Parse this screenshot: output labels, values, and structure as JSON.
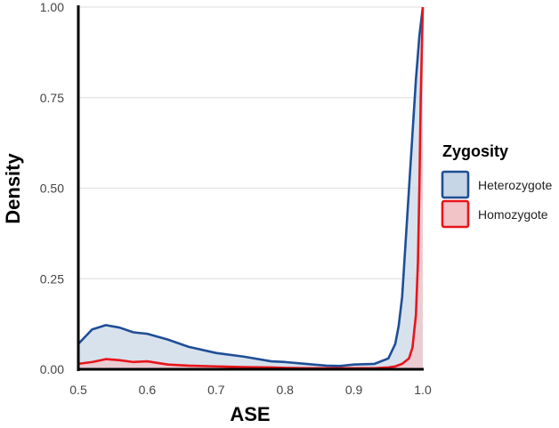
{
  "chart_data": {
    "type": "area",
    "title": "",
    "xlabel": "ASE",
    "ylabel": "Density",
    "xlim": [
      0.5,
      1.0
    ],
    "ylim": [
      0,
      1.0
    ],
    "x_ticks": [
      0.5,
      0.6,
      0.7,
      0.8,
      0.9,
      1.0
    ],
    "x_tick_labels": [
      "0.5",
      "0.6",
      "0.7",
      "0.8",
      "0.9",
      "1.0"
    ],
    "y_ticks": [
      0,
      0.25,
      0.5,
      0.75,
      1.0
    ],
    "y_tick_labels": [
      "0.00",
      "0.25",
      "0.50",
      "0.75",
      "1.00"
    ],
    "grid": "horizontal",
    "legend": {
      "title": "Zygosity",
      "placement": "right"
    },
    "series": [
      {
        "name": "Heterozygote",
        "color": "#1f4e96",
        "fill": "#c6d6e6",
        "x": [
          0.5,
          0.52,
          0.54,
          0.56,
          0.58,
          0.6,
          0.63,
          0.66,
          0.7,
          0.74,
          0.78,
          0.8,
          0.83,
          0.86,
          0.88,
          0.9,
          0.93,
          0.95,
          0.96,
          0.965,
          0.97,
          0.975,
          0.98,
          0.985,
          0.99,
          0.995,
          1.0
        ],
        "values": [
          0.07,
          0.11,
          0.122,
          0.115,
          0.102,
          0.098,
          0.082,
          0.062,
          0.045,
          0.035,
          0.022,
          0.02,
          0.015,
          0.01,
          0.009,
          0.013,
          0.015,
          0.03,
          0.07,
          0.12,
          0.2,
          0.35,
          0.5,
          0.65,
          0.8,
          0.92,
          1.0
        ]
      },
      {
        "name": "Homozygote",
        "color": "#e8151b",
        "fill": "#f2c4c8",
        "x": [
          0.5,
          0.52,
          0.54,
          0.56,
          0.58,
          0.6,
          0.63,
          0.66,
          0.7,
          0.74,
          0.78,
          0.8,
          0.83,
          0.86,
          0.88,
          0.9,
          0.93,
          0.95,
          0.96,
          0.97,
          0.98,
          0.985,
          0.99,
          0.993,
          0.995,
          0.997,
          1.0
        ],
        "values": [
          0.015,
          0.02,
          0.028,
          0.025,
          0.02,
          0.022,
          0.013,
          0.01,
          0.008,
          0.006,
          0.005,
          0.004,
          0.003,
          0.003,
          0.003,
          0.003,
          0.003,
          0.005,
          0.008,
          0.015,
          0.03,
          0.06,
          0.15,
          0.3,
          0.5,
          0.75,
          1.0
        ]
      }
    ]
  }
}
